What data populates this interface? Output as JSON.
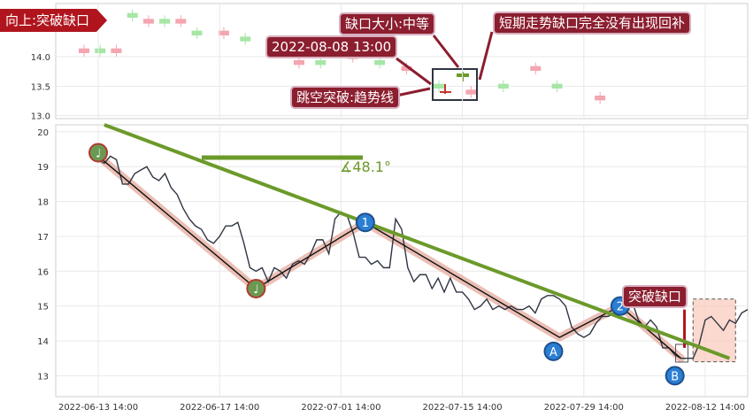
{
  "colors": {
    "up": "#f4a6b0",
    "down": "#a6e6a6",
    "price_line": "#2f3542",
    "zigzag_band": "#e8b4a8",
    "trend": "#6b9a2a",
    "annotation_bg": "#8b1e2f",
    "badge_bg": "#b0151e",
    "pivot_blue": "#2a7fd4",
    "pivot_green": "#6a9a52",
    "grid": "#e8e8e8"
  },
  "badge_label": "向上:突破缺口",
  "top_panel": {
    "y_ticks": [
      "14.0",
      "13.5",
      "13.0"
    ],
    "annotations": {
      "gap_size": "缺口大小:中等",
      "datetime": "2022-08-08 13:00",
      "breakout": "跳空突破:趋势线",
      "no_fill": "短期走势缺口完全没有出现回补"
    }
  },
  "chart_data": {
    "type": "line",
    "x_tick_labels": [
      "2022-06-13 14:00",
      "2022-06-17 14:00",
      "2022-07-01 14:00",
      "2022-07-15 14:00",
      "2022-07-29 14:00",
      "2022-08-12 14:00"
    ],
    "x_tick_index": [
      0,
      20,
      40,
      60,
      80,
      100
    ],
    "y_ticks": [
      13,
      14,
      15,
      16,
      17,
      18,
      19,
      20
    ],
    "ylim": [
      12.4,
      20.2
    ],
    "xlim": [
      -7,
      107
    ],
    "series": [
      {
        "values": [
          19.2,
          19.1,
          19.3,
          19.2,
          18.5,
          18.5,
          18.8,
          18.9,
          19.0,
          18.7,
          18.6,
          18.8,
          18.4,
          18.2,
          17.8,
          17.5,
          17.3,
          17.2,
          16.9,
          16.8,
          17.0,
          17.3,
          17.3,
          17.4,
          16.8,
          16.1,
          16.0,
          16.1,
          15.7,
          16.1,
          16.0,
          15.8,
          16.2,
          16.3,
          16.2,
          16.5,
          16.9,
          16.9,
          16.5,
          17.5,
          17.7,
          17.6,
          17.1,
          16.4,
          16.4,
          16.2,
          16.3,
          16.1,
          16.1,
          17.5,
          17.2,
          16.1,
          15.7,
          15.9,
          15.9,
          15.5,
          15.8,
          15.4,
          15.8,
          15.4,
          15.4,
          15.2,
          14.9,
          15.0,
          15.2,
          14.9,
          15.0,
          14.9,
          15.0,
          14.9,
          14.9,
          15.0,
          14.8,
          15.2,
          15.3,
          15.3,
          15.2,
          15.0,
          14.4,
          14.2,
          14.1,
          14.2,
          14.5,
          14.7,
          14.7,
          14.8,
          15.0,
          14.8,
          15.1,
          14.6,
          14.4,
          14.6,
          14.4,
          13.8,
          13.8,
          13.6,
          13.5,
          13.5,
          13.5,
          13.9,
          14.6,
          14.7,
          14.5,
          14.3,
          14.6,
          14.5,
          14.8,
          14.9
        ]
      }
    ],
    "zigzag": [
      [
        0,
        19.3
      ],
      [
        26,
        15.5
      ],
      [
        44,
        17.4
      ],
      [
        76,
        14.1
      ],
      [
        86,
        15.0
      ],
      [
        96,
        13.5
      ]
    ],
    "trendline": [
      [
        1,
        20.2
      ],
      [
        104,
        13.5
      ]
    ],
    "angle_label": "∡48.1°",
    "pivots": [
      {
        "index": 0,
        "value": 19.4,
        "label": "♩",
        "kind": "green"
      },
      {
        "index": 26,
        "value": 15.5,
        "label": "♩",
        "kind": "green"
      },
      {
        "index": 44,
        "value": 17.4,
        "label": "1",
        "kind": "blue"
      },
      {
        "index": 86,
        "value": 15.0,
        "label": "2",
        "kind": "blue"
      },
      {
        "index": 75,
        "value": 13.7,
        "label": "A",
        "kind": "blue"
      },
      {
        "index": 95,
        "value": 13.0,
        "label": "B",
        "kind": "blue"
      }
    ],
    "gap_label": "突破缺口",
    "gap_zone": {
      "x0": 98,
      "x1": 105,
      "y0": 13.4,
      "y1": 15.2
    }
  }
}
